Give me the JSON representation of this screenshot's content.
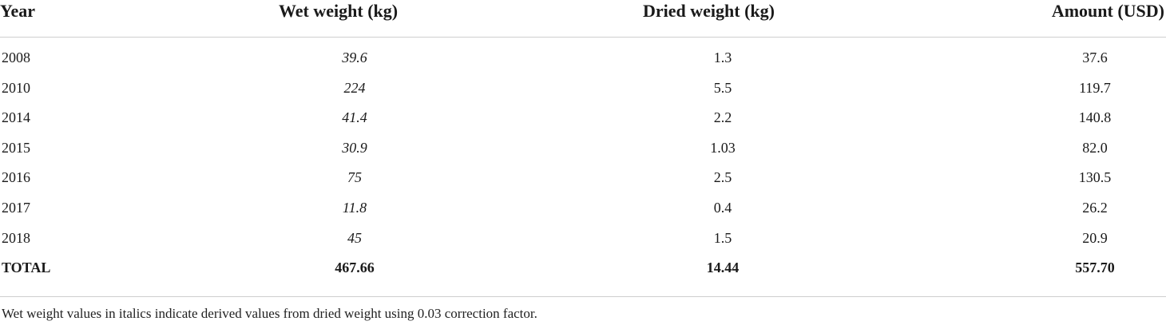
{
  "table": {
    "headers": {
      "year": "Year",
      "wet": "Wet weight (kg)",
      "dried": "Dried weight (kg)",
      "amount": "Amount (USD)"
    },
    "rows": [
      {
        "year": "2008",
        "wet": "39.6",
        "dried": "1.3",
        "amount": "37.6"
      },
      {
        "year": "2010",
        "wet": "224",
        "dried": "5.5",
        "amount": "119.7"
      },
      {
        "year": "2014",
        "wet": "41.4",
        "dried": "2.2",
        "amount": "140.8"
      },
      {
        "year": "2015",
        "wet": "30.9",
        "dried": "1.03",
        "amount": "82.0"
      },
      {
        "year": "2016",
        "wet": "75",
        "dried": "2.5",
        "amount": "130.5"
      },
      {
        "year": "2017",
        "wet": "11.8",
        "dried": "0.4",
        "amount": "26.2"
      },
      {
        "year": "2018",
        "wet": "45",
        "dried": "1.5",
        "amount": "20.9"
      }
    ],
    "total": {
      "year": "TOTAL",
      "wet": "467.66",
      "dried": "14.44",
      "amount": "557.70"
    }
  },
  "footnote": "Wet weight values in italics indicate derived values from dried weight using 0.03 correction factor."
}
